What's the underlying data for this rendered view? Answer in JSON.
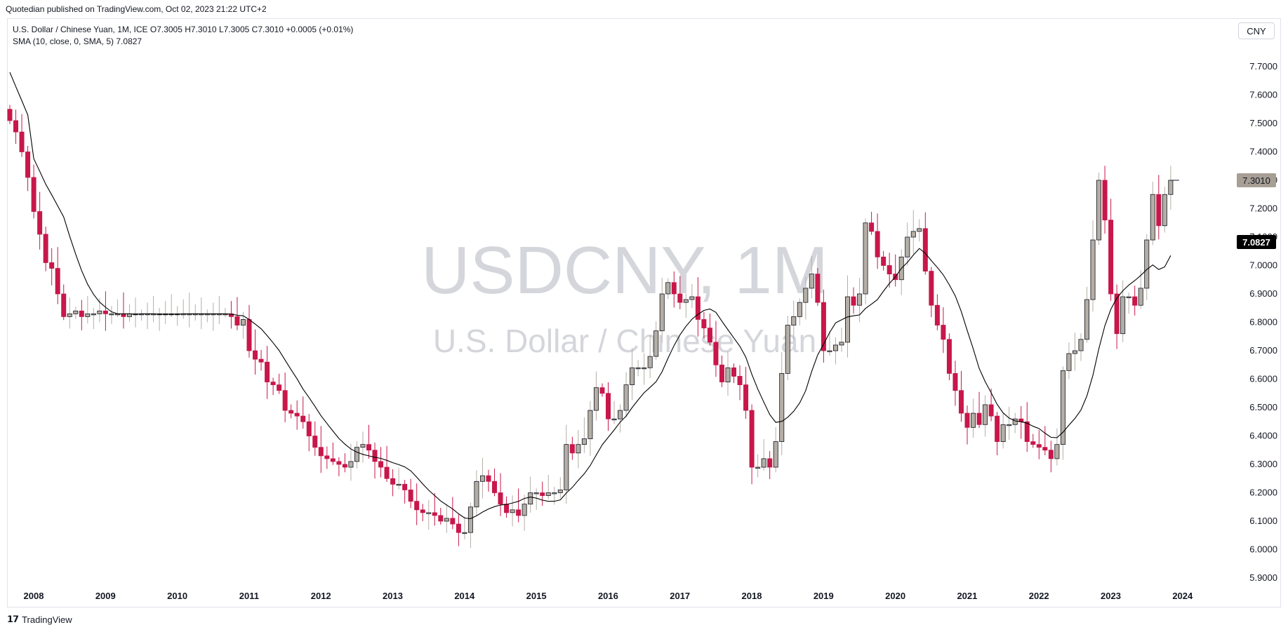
{
  "header": {
    "published": "Quotedian published on TradingView.com, Oct 02, 2023 21:22 UTC+2"
  },
  "legend": {
    "line1": "U.S. Dollar / Chinese Yuan, 1M, ICE  O7.3005  H7.3010  L7.3005  C7.3010  +0.0005 (+0.01%)",
    "line2": "SMA (10, close, 0, SMA, 5)  7.0827"
  },
  "currency_button": "CNY",
  "watermark": {
    "symbol": "USDCNY, 1M",
    "name": "U.S. Dollar / Chinese Yuan"
  },
  "price_labels": {
    "last": "7.3010",
    "sma": "7.0827"
  },
  "footer": {
    "logo_text": "TradingView"
  },
  "colors": {
    "up_candle": "#b5aea5",
    "down_candle": "#c8174a",
    "sma_line": "#000000",
    "last_price_badge": "#a79f95",
    "sma_badge": "#000000",
    "watermark": "#b2b5be"
  },
  "chart_data": {
    "type": "candlestick",
    "title": "U.S. Dollar / Chinese Yuan, 1M, ICE",
    "y_ticks": [
      "5.9000",
      "6.0000",
      "6.1000",
      "6.2000",
      "6.3000",
      "6.4000",
      "6.5000",
      "6.6000",
      "6.7000",
      "6.8000",
      "6.9000",
      "7.0000",
      "7.1000",
      "7.2000",
      "7.3000",
      "7.4000",
      "7.5000",
      "7.6000",
      "7.7000"
    ],
    "ylim": [
      5.86,
      7.82
    ],
    "x_ticks": [
      "2008",
      "2009",
      "2010",
      "2011",
      "2012",
      "2013",
      "2014",
      "2015",
      "2016",
      "2017",
      "2018",
      "2019",
      "2020",
      "2021",
      "2022",
      "2023",
      "2024"
    ],
    "x_start_year": 2007.7,
    "closes": [
      7.51,
      7.47,
      7.4,
      7.31,
      7.19,
      7.11,
      7.01,
      6.99,
      6.9,
      6.82,
      6.83,
      6.84,
      6.82,
      6.83,
      6.83,
      6.84,
      6.83,
      6.83,
      6.83,
      6.82,
      6.83,
      6.83,
      6.83,
      6.83,
      6.83,
      6.83,
      6.83,
      6.83,
      6.83,
      6.83,
      6.83,
      6.83,
      6.83,
      6.83,
      6.83,
      6.83,
      6.83,
      6.82,
      6.79,
      6.81,
      6.7,
      6.67,
      6.66,
      6.59,
      6.58,
      6.56,
      6.49,
      6.48,
      6.47,
      6.45,
      6.4,
      6.36,
      6.33,
      6.32,
      6.31,
      6.3,
      6.29,
      6.31,
      6.36,
      6.37,
      6.35,
      6.31,
      6.29,
      6.25,
      6.23,
      6.23,
      6.21,
      6.17,
      6.14,
      6.13,
      6.13,
      6.12,
      6.1,
      6.11,
      6.09,
      6.06,
      6.06,
      6.15,
      6.24,
      6.26,
      6.24,
      6.2,
      6.16,
      6.13,
      6.14,
      6.12,
      6.16,
      6.2,
      6.2,
      6.19,
      6.2,
      6.2,
      6.21,
      6.37,
      6.34,
      6.37,
      6.39,
      6.49,
      6.57,
      6.55,
      6.46,
      6.46,
      6.49,
      6.58,
      6.64,
      6.64,
      6.64,
      6.68,
      6.77,
      6.9,
      6.94,
      6.9,
      6.87,
      6.88,
      6.89,
      6.81,
      6.78,
      6.73,
      6.65,
      6.59,
      6.64,
      6.61,
      6.58,
      6.49,
      6.29,
      6.29,
      6.32,
      6.29,
      6.38,
      6.62,
      6.79,
      6.82,
      6.87,
      6.92,
      6.97,
      6.87,
      6.7,
      6.7,
      6.72,
      6.73,
      6.89,
      6.86,
      6.9,
      7.15,
      7.12,
      7.03,
      7.0,
      6.97,
      6.95,
      7.03,
      7.1,
      7.12,
      7.13,
      6.98,
      6.86,
      6.79,
      6.74,
      6.62,
      6.56,
      6.48,
      6.43,
      6.48,
      6.44,
      6.51,
      6.47,
      6.38,
      6.44,
      6.44,
      6.46,
      6.45,
      6.38,
      6.37,
      6.36,
      6.35,
      6.32,
      6.37,
      6.63,
      6.69,
      6.7,
      6.74,
      6.88,
      7.09,
      7.3,
      7.16,
      6.9,
      6.76,
      6.89,
      6.89,
      6.86,
      6.92,
      7.09,
      7.25,
      7.14,
      7.25,
      7.3
    ],
    "series": [
      {
        "name": "SMA (10, close, 0, SMA, 5)",
        "last_value": 7.0827
      }
    ]
  }
}
